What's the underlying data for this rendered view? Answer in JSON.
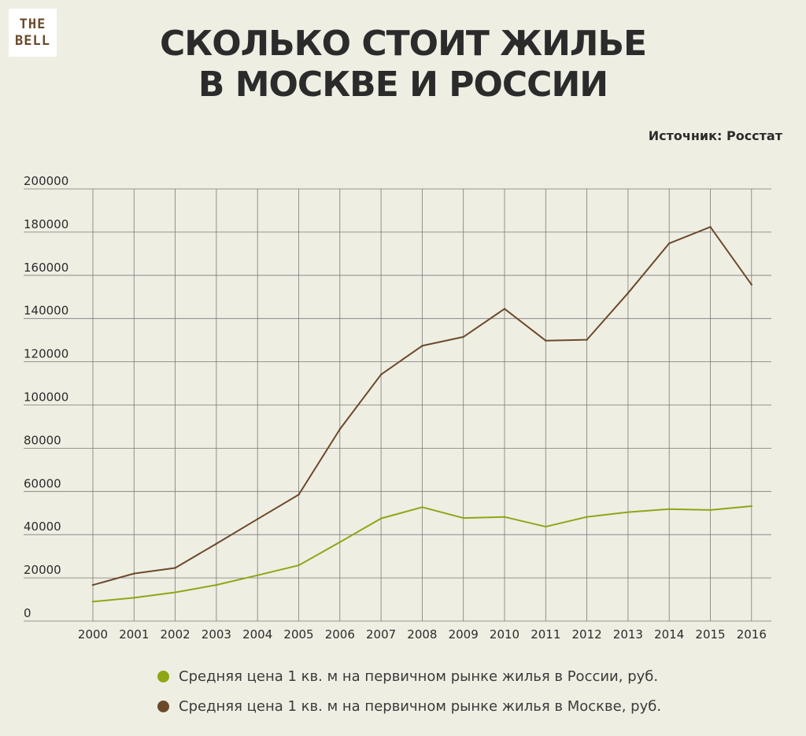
{
  "logo": {
    "line1": "THE",
    "line2": "BELL"
  },
  "header": {
    "title_line1": "СКОЛЬКО СТОИТ ЖИЛЬЕ",
    "title_line2": "В МОСКВЕ И РОССИИ",
    "source": "Источник: Росстат"
  },
  "colors": {
    "background": "#efeee3",
    "russia": "#8fa614",
    "moscow": "#6b4a2b",
    "grid": "#7a7a7a"
  },
  "chart_data": {
    "type": "line",
    "title": "СКОЛЬКО СТОИТ ЖИЛЬЕ В МОСКВЕ И РОССИИ",
    "xlabel": "",
    "ylabel": "",
    "x": [
      "2000",
      "2001",
      "2002",
      "2003",
      "2004",
      "2005",
      "2006",
      "2007",
      "2008",
      "2009",
      "2010",
      "2011",
      "2012",
      "2013",
      "2014",
      "2015",
      "2016"
    ],
    "ylim": [
      0,
      200000
    ],
    "yticks": [
      "0",
      "20000",
      "40000",
      "60000",
      "80000",
      "100000",
      "120000",
      "140000",
      "160000",
      "180000",
      "200000"
    ],
    "grid": true,
    "legend_position": "bottom",
    "series": [
      {
        "name": "Средняя цена 1 кв. м на первичном рынке жилья в России, руб.",
        "color": "#8fa614",
        "values": [
          9000,
          10800,
          13300,
          16700,
          21200,
          25800,
          36500,
          47500,
          52700,
          47700,
          48200,
          43700,
          48200,
          50400,
          51800,
          51400,
          53200
        ]
      },
      {
        "name": "Средняя цена 1 кв. м на первичном рынке жилья в Москве, руб.",
        "color": "#6b4a2b",
        "values": [
          16700,
          22000,
          24600,
          35800,
          47200,
          58500,
          88800,
          114100,
          127400,
          131500,
          144500,
          129800,
          130200,
          151800,
          174800,
          182400,
          155700
        ]
      }
    ]
  }
}
